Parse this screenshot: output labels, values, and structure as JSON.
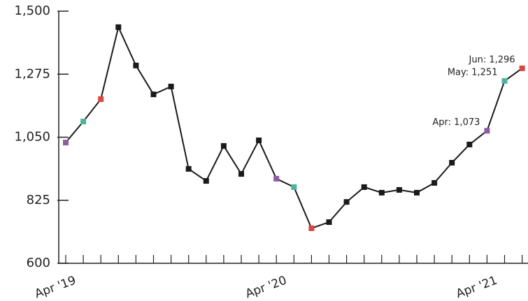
{
  "chart_data": {
    "type": "line",
    "categories": [
      "Apr '19",
      null,
      null,
      null,
      null,
      null,
      null,
      null,
      null,
      null,
      null,
      null,
      "Apr '20",
      null,
      null,
      null,
      null,
      null,
      null,
      null,
      null,
      null,
      null,
      null,
      "Apr '21",
      null,
      null
    ],
    "series": [
      {
        "color": "#1a1a1a",
        "values": [
          1031,
          1106,
          1186,
          1443,
          1306,
          1203,
          1231,
          937,
          894,
          1019,
          919,
          1039,
          902,
          872,
          725,
          747,
          819,
          872,
          852,
          862,
          852,
          887,
          959,
          1024,
          1073,
          1251,
          1296
        ],
        "value_labels": [
          null,
          null,
          null,
          null,
          null,
          null,
          null,
          null,
          null,
          null,
          null,
          null,
          null,
          null,
          null,
          null,
          null,
          null,
          null,
          null,
          null,
          null,
          null,
          null,
          "Apr: 1,073",
          "May: 1,251",
          "Jun: 1,296"
        ],
        "marker_colors": [
          "#8a5f9e",
          "#4db39a",
          "#d9473f",
          "#1a1a1a",
          "#1a1a1a",
          "#1a1a1a",
          "#1a1a1a",
          "#1a1a1a",
          "#1a1a1a",
          "#1a1a1a",
          "#1a1a1a",
          "#1a1a1a",
          "#8a5f9e",
          "#4db39a",
          "#d9473f",
          "#1a1a1a",
          "#1a1a1a",
          "#1a1a1a",
          "#1a1a1a",
          "#1a1a1a",
          "#1a1a1a",
          "#1a1a1a",
          "#1a1a1a",
          "#1a1a1a",
          "#8a5f9e",
          "#4db39a",
          "#d9473f"
        ]
      }
    ],
    "ylim": [
      600,
      1500
    ],
    "yticks": [
      600,
      825,
      {
        "value": 1050,
        "label": "1,050"
      },
      {
        "value": 1275,
        "label": "1,275"
      },
      {
        "value": 1500,
        "label": "1,500"
      }
    ]
  }
}
